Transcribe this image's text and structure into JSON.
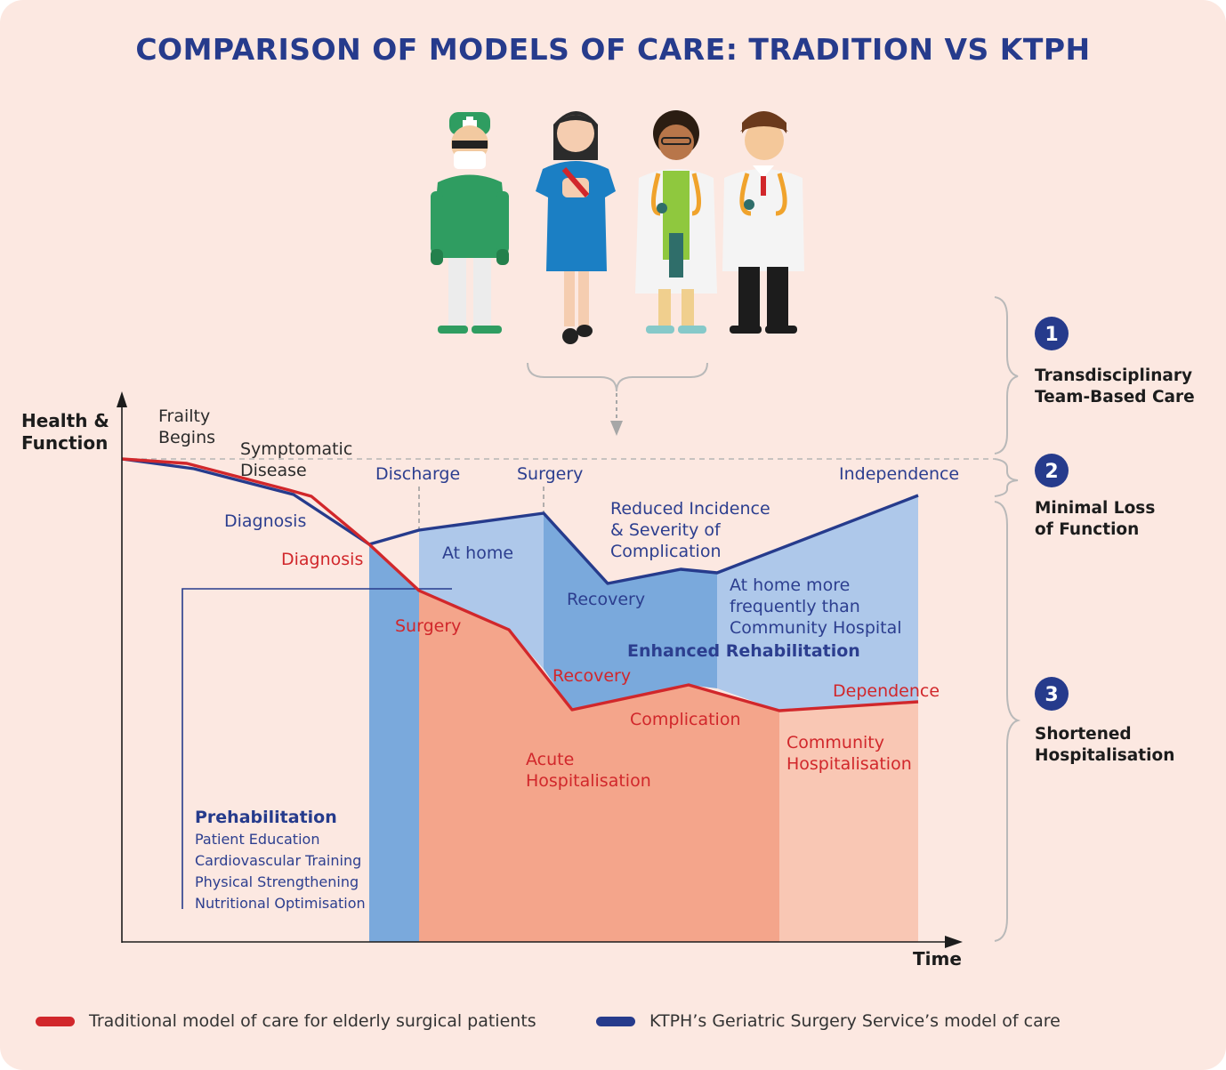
{
  "title": "COMPARISON OF MODELS OF CARE: TRADITION VS KTPH",
  "axes": {
    "y": "Health & Function",
    "y_line1": "Health &",
    "y_line2": "Function",
    "x": "Time"
  },
  "stages": {
    "frailty": [
      "Frailty",
      "Begins"
    ],
    "symptomatic": [
      "Symptomatic",
      "Disease"
    ],
    "diagnosis_ktph": "Diagnosis",
    "diagnosis_trad": "Diagnosis",
    "discharge": "Discharge",
    "surgery_ktph": "Surgery",
    "independence": "Independence",
    "reduced": [
      "Reduced Incidence",
      "& Severity of",
      "Complication"
    ],
    "at_home": "At home",
    "recovery_ktph": "Recovery",
    "at_home_more": [
      "At home more",
      "frequently than",
      "Community Hospital"
    ],
    "enhanced": "Enhanced Rehabilitation",
    "surgery_trad": "Surgery",
    "recovery_trad": "Recovery",
    "dependence": "Dependence",
    "complication": "Complication",
    "acute": [
      "Acute",
      "Hospitalisation"
    ],
    "community": [
      "Community",
      "Hospitalisation"
    ]
  },
  "prehab": {
    "title": "Prehabilitation",
    "items": [
      "Patient Education",
      "Cardiovascular Training",
      "Physical Strengthening",
      "Nutritional Optimisation"
    ]
  },
  "side_panel": [
    {
      "num": "1",
      "text": [
        "Transdisciplinary",
        "Team-Based Care"
      ]
    },
    {
      "num": "2",
      "text": [
        "Minimal Loss",
        "of Function"
      ]
    },
    {
      "num": "3",
      "text": [
        "Shortened",
        "Hospitalisation"
      ]
    }
  ],
  "legend": {
    "traditional": "Traditional model of care for elderly surgical patients",
    "ktph": "KTPH’s Geriatric Surgery Service’s model of care"
  },
  "colors": {
    "background": "#fce8e1",
    "title": "#263b8c",
    "traditional": "#d1272b",
    "ktph": "#263b8c",
    "hospital_dark": "#f4a58b",
    "hospital_light": "#f9c7b4",
    "home_light": "#aec8ea",
    "rehab_mid": "#7aa9dc"
  },
  "chart_data": {
    "type": "line",
    "title": "COMPARISON OF MODELS OF CARE: TRADITION VS KTPH",
    "xlabel": "Time",
    "ylabel": "Health & Function",
    "series": [
      {
        "name": "Traditional model of care for elderly surgical patients",
        "color": "#d1272b"
      },
      {
        "name": "KTPH’s Geriatric Surgery Service’s model of care",
        "color": "#263b8c"
      }
    ]
  }
}
